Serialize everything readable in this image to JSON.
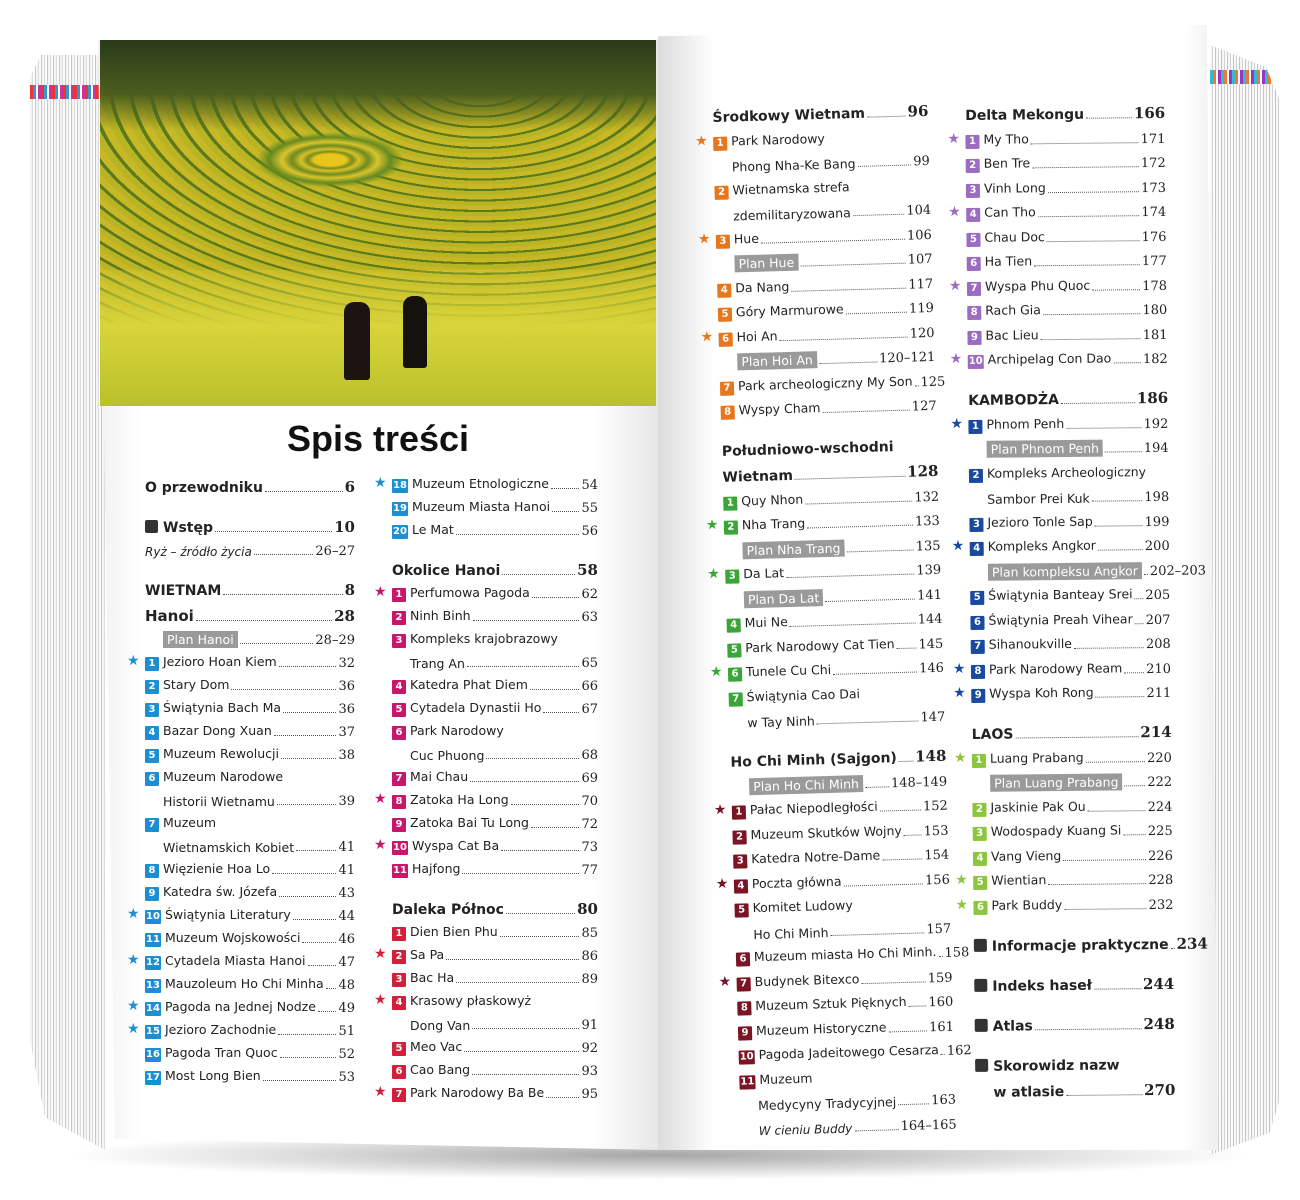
{
  "title": "Spis treści",
  "colors": {
    "hanoi": "#1b8fd2",
    "okolice": "#c8176b",
    "polnoc": "#d41f3a",
    "srodkowy": "#e8761c",
    "pdwsch": "#3aa63a",
    "hcm": "#7a1526",
    "delta": "#9b6cc2",
    "kambodza": "#1a4aa0",
    "laos": "#8cc63f",
    "square": "#333333"
  },
  "columns": [
    [
      {
        "type": "head",
        "square": false,
        "text": "O przewodniku",
        "page": "6"
      },
      {
        "type": "gap"
      },
      {
        "type": "head",
        "square": true,
        "text": "Wstęp",
        "page": "10"
      },
      {
        "type": "ital",
        "text": "Ryż – źródło życia",
        "page": "26–27"
      },
      {
        "type": "gap"
      },
      {
        "type": "head",
        "text": "WIETNAM",
        "page": "8"
      },
      {
        "type": "head",
        "big": true,
        "text": "Hanoi",
        "page": "28"
      },
      {
        "type": "plan",
        "text": "Plan Hanoi",
        "page": "28–29"
      },
      {
        "type": "item",
        "c": "hanoi",
        "num": "1",
        "star": true,
        "lines": [
          "Jezioro Hoan Kiem"
        ],
        "page": "32"
      },
      {
        "type": "item",
        "c": "hanoi",
        "num": "2",
        "lines": [
          "Stary Dom"
        ],
        "page": "36"
      },
      {
        "type": "item",
        "c": "hanoi",
        "num": "3",
        "lines": [
          "Świątynia Bach Ma"
        ],
        "page": "36"
      },
      {
        "type": "item",
        "c": "hanoi",
        "num": "4",
        "lines": [
          "Bazar Dong Xuan"
        ],
        "page": "37"
      },
      {
        "type": "item",
        "c": "hanoi",
        "num": "5",
        "lines": [
          "Muzeum Rewolucji"
        ],
        "page": "38"
      },
      {
        "type": "item",
        "c": "hanoi",
        "num": "6",
        "lines": [
          "Muzeum Narodowe",
          "Historii Wietnamu"
        ],
        "page": "39"
      },
      {
        "type": "item",
        "c": "hanoi",
        "num": "7",
        "lines": [
          "Muzeum",
          "Wietnamskich Kobiet"
        ],
        "page": "41"
      },
      {
        "type": "item",
        "c": "hanoi",
        "num": "8",
        "lines": [
          "Więzienie Hoa Lo"
        ],
        "page": "41"
      },
      {
        "type": "item",
        "c": "hanoi",
        "num": "9",
        "lines": [
          "Katedra św. Józefa"
        ],
        "page": "43"
      },
      {
        "type": "item",
        "c": "hanoi",
        "num": "10",
        "star": true,
        "lines": [
          "Świątynia Literatury"
        ],
        "page": "44"
      },
      {
        "type": "item",
        "c": "hanoi",
        "num": "11",
        "lines": [
          "Muzeum Wojskowości"
        ],
        "page": "46"
      },
      {
        "type": "item",
        "c": "hanoi",
        "num": "12",
        "star": true,
        "lines": [
          "Cytadela Miasta Hanoi"
        ],
        "page": "47"
      },
      {
        "type": "item",
        "c": "hanoi",
        "num": "13",
        "lines": [
          "Mauzoleum Ho Chi Minha"
        ],
        "page": "48"
      },
      {
        "type": "item",
        "c": "hanoi",
        "num": "14",
        "star": true,
        "lines": [
          "Pagoda na Jednej Nodze"
        ],
        "page": "49"
      },
      {
        "type": "item",
        "c": "hanoi",
        "num": "15",
        "star": true,
        "lines": [
          "Jezioro Zachodnie"
        ],
        "page": "51"
      },
      {
        "type": "item",
        "c": "hanoi",
        "num": "16",
        "lines": [
          "Pagoda Tran Quoc"
        ],
        "page": "52"
      },
      {
        "type": "item",
        "c": "hanoi",
        "num": "17",
        "lines": [
          "Most Long Bien"
        ],
        "page": "53"
      }
    ],
    [
      {
        "type": "item",
        "c": "hanoi",
        "num": "18",
        "star": true,
        "lines": [
          "Muzeum Etnologiczne"
        ],
        "page": "54"
      },
      {
        "type": "item",
        "c": "hanoi",
        "num": "19",
        "lines": [
          "Muzeum Miasta Hanoi"
        ],
        "page": "55"
      },
      {
        "type": "item",
        "c": "hanoi",
        "num": "20",
        "lines": [
          "Le Mat"
        ],
        "page": "56"
      },
      {
        "type": "gap"
      },
      {
        "type": "head",
        "text": "Okolice Hanoi",
        "page": "58"
      },
      {
        "type": "item",
        "c": "okolice",
        "num": "1",
        "star": true,
        "lines": [
          "Perfumowa Pagoda"
        ],
        "page": "62"
      },
      {
        "type": "item",
        "c": "okolice",
        "num": "2",
        "lines": [
          "Ninh Binh"
        ],
        "page": "63"
      },
      {
        "type": "item",
        "c": "okolice",
        "num": "3",
        "lines": [
          "Kompleks krajobrazowy",
          "Trang An"
        ],
        "page": "65"
      },
      {
        "type": "item",
        "c": "okolice",
        "num": "4",
        "lines": [
          "Katedra Phat Diem"
        ],
        "page": "66"
      },
      {
        "type": "item",
        "c": "okolice",
        "num": "5",
        "lines": [
          "Cytadela Dynastii Ho"
        ],
        "page": "67"
      },
      {
        "type": "item",
        "c": "okolice",
        "num": "6",
        "lines": [
          "Park Narodowy",
          "Cuc Phuong"
        ],
        "page": "68"
      },
      {
        "type": "item",
        "c": "okolice",
        "num": "7",
        "lines": [
          "Mai Chau"
        ],
        "page": "69"
      },
      {
        "type": "item",
        "c": "okolice",
        "num": "8",
        "star": true,
        "lines": [
          "Zatoka Ha Long"
        ],
        "page": "70"
      },
      {
        "type": "item",
        "c": "okolice",
        "num": "9",
        "lines": [
          "Zatoka Bai Tu Long"
        ],
        "page": "72"
      },
      {
        "type": "item",
        "c": "okolice",
        "num": "10",
        "star": true,
        "lines": [
          "Wyspa Cat Ba"
        ],
        "page": "73"
      },
      {
        "type": "item",
        "c": "okolice",
        "num": "11",
        "lines": [
          "Hajfong"
        ],
        "page": "77"
      },
      {
        "type": "gap"
      },
      {
        "type": "head",
        "text": "Daleka Północ",
        "page": "80"
      },
      {
        "type": "item",
        "c": "polnoc",
        "num": "1",
        "lines": [
          "Dien Bien Phu"
        ],
        "page": "85"
      },
      {
        "type": "item",
        "c": "polnoc",
        "num": "2",
        "star": true,
        "lines": [
          "Sa Pa"
        ],
        "page": "86"
      },
      {
        "type": "item",
        "c": "polnoc",
        "num": "3",
        "lines": [
          "Bac Ha"
        ],
        "page": "89"
      },
      {
        "type": "item",
        "c": "polnoc",
        "num": "4",
        "star": true,
        "lines": [
          "Krasowy płaskowyż",
          "Dong Van"
        ],
        "page": "91"
      },
      {
        "type": "item",
        "c": "polnoc",
        "num": "5",
        "lines": [
          "Meo Vac"
        ],
        "page": "92"
      },
      {
        "type": "item",
        "c": "polnoc",
        "num": "6",
        "lines": [
          "Cao Bang"
        ],
        "page": "93"
      },
      {
        "type": "item",
        "c": "polnoc",
        "num": "7",
        "star": true,
        "lines": [
          "Park Narodowy Ba Be"
        ],
        "page": "95"
      }
    ],
    [
      {
        "type": "head",
        "text": "Środkowy Wietnam",
        "page": "96"
      },
      {
        "type": "item",
        "c": "srodkowy",
        "num": "1",
        "star": true,
        "lines": [
          "Park Narodowy",
          "Phong Nha-Ke Bang"
        ],
        "page": "99"
      },
      {
        "type": "item",
        "c": "srodkowy",
        "num": "2",
        "lines": [
          "Wietnamska strefa",
          "zdemilitaryzowana"
        ],
        "page": "104"
      },
      {
        "type": "item",
        "c": "srodkowy",
        "num": "3",
        "star": true,
        "lines": [
          "Hue"
        ],
        "page": "106"
      },
      {
        "type": "plan",
        "text": "Plan Hue",
        "page": "107"
      },
      {
        "type": "item",
        "c": "srodkowy",
        "num": "4",
        "lines": [
          "Da Nang"
        ],
        "page": "117"
      },
      {
        "type": "item",
        "c": "srodkowy",
        "num": "5",
        "lines": [
          "Góry Marmurowe"
        ],
        "page": "119"
      },
      {
        "type": "item",
        "c": "srodkowy",
        "num": "6",
        "star": true,
        "lines": [
          "Hoi An"
        ],
        "page": "120"
      },
      {
        "type": "plan",
        "text": "Plan Hoi An",
        "page": "120–121"
      },
      {
        "type": "item",
        "c": "srodkowy",
        "num": "7",
        "lines": [
          "Park archeologiczny My Son"
        ],
        "page": "125"
      },
      {
        "type": "item",
        "c": "srodkowy",
        "num": "8",
        "lines": [
          "Wyspy Cham"
        ],
        "page": "127"
      },
      {
        "type": "gap"
      },
      {
        "type": "head2",
        "lines": [
          "Południowo-wschodni",
          "Wietnam"
        ],
        "page": "128"
      },
      {
        "type": "item",
        "c": "pdwsch",
        "num": "1",
        "lines": [
          "Quy Nhon"
        ],
        "page": "132"
      },
      {
        "type": "item",
        "c": "pdwsch",
        "num": "2",
        "star": true,
        "lines": [
          "Nha Trang"
        ],
        "page": "133"
      },
      {
        "type": "plan",
        "text": "Plan Nha Trang",
        "page": "135"
      },
      {
        "type": "item",
        "c": "pdwsch",
        "num": "3",
        "star": true,
        "lines": [
          "Da Lat"
        ],
        "page": "139"
      },
      {
        "type": "plan",
        "text": "Plan Da Lat",
        "page": "141"
      },
      {
        "type": "item",
        "c": "pdwsch",
        "num": "4",
        "lines": [
          "Mui Ne"
        ],
        "page": "144"
      },
      {
        "type": "item",
        "c": "pdwsch",
        "num": "5",
        "lines": [
          "Park Narodowy Cat Tien"
        ],
        "page": "145"
      },
      {
        "type": "item",
        "c": "pdwsch",
        "num": "6",
        "star": true,
        "lines": [
          "Tunele Cu Chi"
        ],
        "page": "146"
      },
      {
        "type": "item",
        "c": "pdwsch",
        "num": "7",
        "lines": [
          "Świątynia Cao Dai",
          "w Tay Ninh"
        ],
        "page": "147"
      },
      {
        "type": "gap"
      },
      {
        "type": "head",
        "text": "Ho Chi Minh (Sajgon)",
        "page": "148"
      },
      {
        "type": "plan",
        "text": "Plan Ho Chi Minh",
        "page": "148–149"
      },
      {
        "type": "item",
        "c": "hcm",
        "num": "1",
        "star": true,
        "lines": [
          "Pałac Niepodległości"
        ],
        "page": "152"
      },
      {
        "type": "item",
        "c": "hcm",
        "num": "2",
        "lines": [
          "Muzeum Skutków Wojny"
        ],
        "page": "153"
      },
      {
        "type": "item",
        "c": "hcm",
        "num": "3",
        "lines": [
          "Katedra Notre-Dame"
        ],
        "page": "154"
      },
      {
        "type": "item",
        "c": "hcm",
        "num": "4",
        "star": true,
        "lines": [
          "Poczta główna"
        ],
        "page": "156"
      },
      {
        "type": "item",
        "c": "hcm",
        "num": "5",
        "lines": [
          "Komitet Ludowy",
          "Ho Chi Minh"
        ],
        "page": "157"
      },
      {
        "type": "item",
        "c": "hcm",
        "num": "6",
        "lines": [
          "Muzeum miasta Ho Chi Minh."
        ],
        "page": "158"
      },
      {
        "type": "item",
        "c": "hcm",
        "num": "7",
        "star": true,
        "lines": [
          "Budynek Bitexco"
        ],
        "page": "159"
      },
      {
        "type": "item",
        "c": "hcm",
        "num": "8",
        "lines": [
          "Muzeum Sztuk Pięknych"
        ],
        "page": "160"
      },
      {
        "type": "item",
        "c": "hcm",
        "num": "9",
        "lines": [
          "Muzeum Historyczne"
        ],
        "page": "161"
      },
      {
        "type": "item",
        "c": "hcm",
        "num": "10",
        "lines": [
          "Pagoda Jadeitowego Cesarza"
        ],
        "page": "162"
      },
      {
        "type": "item",
        "c": "hcm",
        "num": "11",
        "lines": [
          "Muzeum",
          "Medycyny Tradycyjnej"
        ],
        "page": "163"
      },
      {
        "type": "sub",
        "text": "W cieniu Buddy",
        "page": "164–165"
      }
    ],
    [
      {
        "type": "head",
        "text": "Delta Mekongu",
        "page": "166"
      },
      {
        "type": "item",
        "c": "delta",
        "num": "1",
        "star": true,
        "lines": [
          "My Tho"
        ],
        "page": "171"
      },
      {
        "type": "item",
        "c": "delta",
        "num": "2",
        "lines": [
          "Ben Tre"
        ],
        "page": "172"
      },
      {
        "type": "item",
        "c": "delta",
        "num": "3",
        "lines": [
          "Vinh Long"
        ],
        "page": "173"
      },
      {
        "type": "item",
        "c": "delta",
        "num": "4",
        "star": true,
        "lines": [
          "Can Tho"
        ],
        "page": "174"
      },
      {
        "type": "item",
        "c": "delta",
        "num": "5",
        "lines": [
          "Chau Doc"
        ],
        "page": "176"
      },
      {
        "type": "item",
        "c": "delta",
        "num": "6",
        "lines": [
          "Ha Tien"
        ],
        "page": "177"
      },
      {
        "type": "item",
        "c": "delta",
        "num": "7",
        "star": true,
        "lines": [
          "Wyspa Phu Quoc"
        ],
        "page": "178"
      },
      {
        "type": "item",
        "c": "delta",
        "num": "8",
        "lines": [
          "Rach Gia"
        ],
        "page": "180"
      },
      {
        "type": "item",
        "c": "delta",
        "num": "9",
        "lines": [
          "Bac Lieu"
        ],
        "page": "181"
      },
      {
        "type": "item",
        "c": "delta",
        "num": "10",
        "star": true,
        "lines": [
          "Archipelag Con Dao"
        ],
        "page": "182"
      },
      {
        "type": "gap"
      },
      {
        "type": "head",
        "text": "KAMBODŻA",
        "page": "186"
      },
      {
        "type": "item",
        "c": "kambodza",
        "num": "1",
        "star": true,
        "lines": [
          "Phnom Penh"
        ],
        "page": "192"
      },
      {
        "type": "plan",
        "text": "Plan Phnom Penh",
        "page": "194"
      },
      {
        "type": "item",
        "c": "kambodza",
        "num": "2",
        "lines": [
          "Kompleks Archeologiczny",
          "Sambor Prei Kuk"
        ],
        "page": "198"
      },
      {
        "type": "item",
        "c": "kambodza",
        "num": "3",
        "lines": [
          "Jezioro Tonle Sap"
        ],
        "page": "199"
      },
      {
        "type": "item",
        "c": "kambodza",
        "num": "4",
        "star": true,
        "lines": [
          "Kompleks Angkor"
        ],
        "page": "200"
      },
      {
        "type": "plan",
        "text": "Plan kompleksu Angkor",
        "page": "202–203"
      },
      {
        "type": "item",
        "c": "kambodza",
        "num": "5",
        "lines": [
          "Świątynia Banteay Srei"
        ],
        "page": "205"
      },
      {
        "type": "item",
        "c": "kambodza",
        "num": "6",
        "lines": [
          "Świątynia Preah Vihear"
        ],
        "page": "207"
      },
      {
        "type": "item",
        "c": "kambodza",
        "num": "7",
        "lines": [
          "Sihanoukville"
        ],
        "page": "208"
      },
      {
        "type": "item",
        "c": "kambodza",
        "num": "8",
        "star": true,
        "lines": [
          "Park Narodowy Ream"
        ],
        "page": "210"
      },
      {
        "type": "item",
        "c": "kambodza",
        "num": "9",
        "star": true,
        "lines": [
          "Wyspa Koh Rong"
        ],
        "page": "211"
      },
      {
        "type": "gap"
      },
      {
        "type": "head",
        "text": "LAOS",
        "page": "214"
      },
      {
        "type": "item",
        "c": "laos",
        "num": "1",
        "star": true,
        "lines": [
          "Luang Prabang"
        ],
        "page": "220"
      },
      {
        "type": "plan",
        "text": "Plan Luang Prabang",
        "page": "222"
      },
      {
        "type": "item",
        "c": "laos",
        "num": "2",
        "lines": [
          "Jaskinie Pak Ou"
        ],
        "page": "224"
      },
      {
        "type": "item",
        "c": "laos",
        "num": "3",
        "lines": [
          "Wodospady Kuang Si"
        ],
        "page": "225"
      },
      {
        "type": "item",
        "c": "laos",
        "num": "4",
        "lines": [
          "Vang Vieng"
        ],
        "page": "226"
      },
      {
        "type": "item",
        "c": "laos",
        "num": "5",
        "star": true,
        "lines": [
          "Wientian"
        ],
        "page": "228"
      },
      {
        "type": "item",
        "c": "laos",
        "num": "6",
        "star": true,
        "lines": [
          "Park Buddy"
        ],
        "page": "232"
      },
      {
        "type": "gap"
      },
      {
        "type": "head",
        "square": true,
        "text": "Informacje praktyczne",
        "page": "234"
      },
      {
        "type": "gap"
      },
      {
        "type": "head",
        "square": true,
        "text": "Indeks haseł",
        "page": "244"
      },
      {
        "type": "gap"
      },
      {
        "type": "head",
        "square": true,
        "text": "Atlas",
        "page": "248"
      },
      {
        "type": "gap"
      },
      {
        "type": "head2",
        "square": true,
        "lines": [
          "Skorowidz nazw",
          "w atlasie"
        ],
        "page": "270"
      }
    ]
  ]
}
